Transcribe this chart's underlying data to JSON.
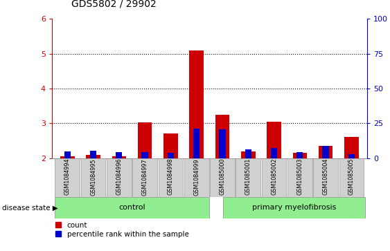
{
  "title": "GDS5802 / 29902",
  "samples": [
    "GSM1084994",
    "GSM1084995",
    "GSM1084996",
    "GSM1084997",
    "GSM1084998",
    "GSM1084999",
    "GSM1085000",
    "GSM1085001",
    "GSM1085002",
    "GSM1085003",
    "GSM1085004",
    "GSM1085005"
  ],
  "red_values": [
    2.05,
    2.1,
    2.05,
    3.02,
    2.7,
    5.1,
    3.25,
    2.2,
    3.05,
    2.15,
    2.35,
    2.6
  ],
  "blue_values": [
    2.2,
    2.22,
    2.18,
    2.18,
    2.15,
    2.85,
    2.82,
    2.25,
    2.3,
    2.18,
    2.35,
    2.12
  ],
  "ylim_left": [
    2.0,
    6.0
  ],
  "yticks_left": [
    2,
    3,
    4,
    5,
    6
  ],
  "yticks_right": [
    0,
    25,
    50,
    75,
    100
  ],
  "red_color": "#cc0000",
  "blue_color": "#0000cc",
  "control_samples": 6,
  "group_labels": [
    "control",
    "primary myelofibrosis"
  ],
  "green_color": "#90ee90",
  "legend_count": "count",
  "legend_percentile": "percentile rank within the sample",
  "disease_state_label": "disease state"
}
